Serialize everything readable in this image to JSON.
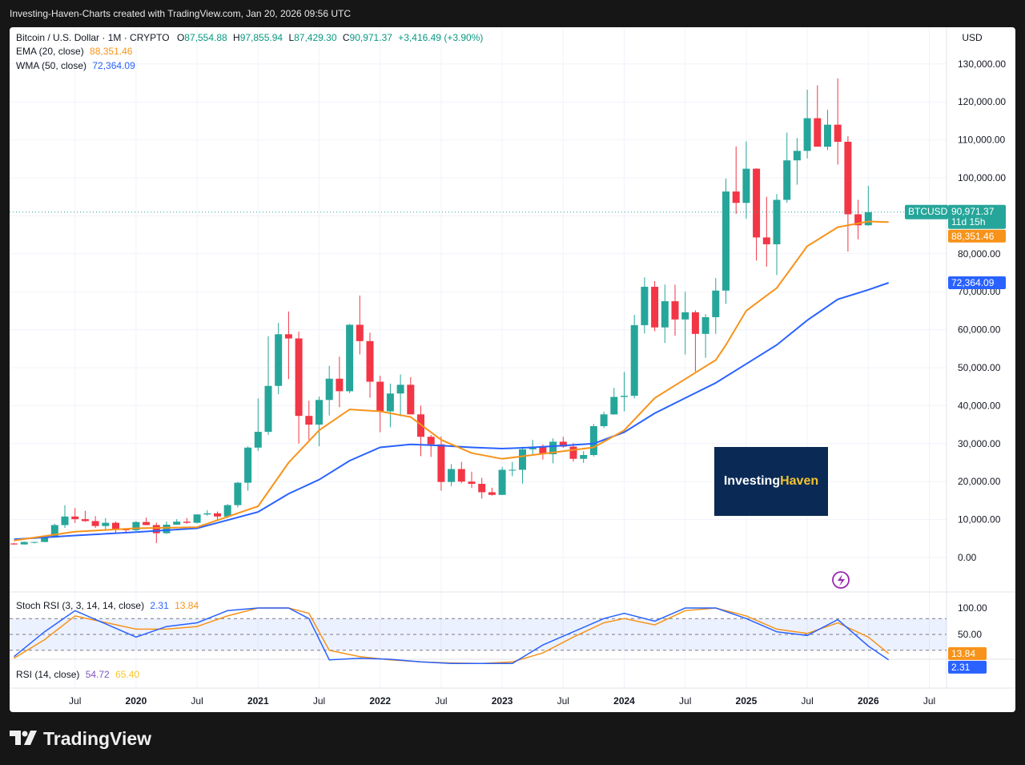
{
  "header": {
    "caption": "Investing-Haven-Charts created with TradingView.com, Jan 20, 2026 09:56 UTC"
  },
  "legend": {
    "symbol": "Bitcoin / U.S. Dollar · 1M · CRYPTO",
    "o_label": "O",
    "o": "87,554.88",
    "h_label": "H",
    "h": "97,855.94",
    "l_label": "L",
    "l": "87,429.30",
    "c_label": "C",
    "c": "90,971.37",
    "change": "+3,416.49 (+3.90%)",
    "ema_label": "EMA (20, close)",
    "ema_value": "88,351.46",
    "wma_label": "WMA (50, close)",
    "wma_value": "72,364.09",
    "stoch_label": "Stoch RSI (3, 3, 14, 14, close)",
    "stoch_k": "2.31",
    "stoch_d": "13.84",
    "rsi_label": "RSI (14, close)",
    "rsi_value": "54.72",
    "rsi_ma": "65.40"
  },
  "currency": "USD",
  "price_badge": {
    "symbol": "BTCUSD",
    "price": "90,971.37",
    "countdown": "11d 15h"
  },
  "ema_badge": "88,351.46",
  "wma_badge": "72,364.09",
  "stoch_badges": {
    "d": "13.84",
    "k": "2.31"
  },
  "watermark": {
    "part1": "Investing",
    "part2": "Haven"
  },
  "footer": {
    "brand": "TradingView"
  },
  "colors": {
    "up": "#26a69a",
    "down": "#f23645",
    "ema": "#f7931a",
    "wma": "#2962ff",
    "k": "#2962ff",
    "d": "#f7931a",
    "rsi": "#7e57c2",
    "rsi_ma": "#f9c62b",
    "badge_bg": "#0a2a55",
    "badge_accent": "#f2c230"
  },
  "chart_data": {
    "type": "candlestick",
    "title": "Bitcoin / U.S. Dollar · 1M · CRYPTO",
    "y_ticks": [
      "130,000.00",
      "120,000.00",
      "110,000.00",
      "100,000.00",
      "90,000.00",
      "80,000.00",
      "70,000.00",
      "60,000.00",
      "50,000.00",
      "40,000.00",
      "30,000.00",
      "20,000.00",
      "10,000.00",
      "0.00"
    ],
    "ylim": [
      0,
      130000
    ],
    "x_ticks": [
      "Jul",
      "2020",
      "Jul",
      "2021",
      "Jul",
      "2022",
      "Jul",
      "2023",
      "Jul",
      "2024",
      "Jul",
      "2025",
      "Jul",
      "2026",
      "Jul"
    ],
    "x_tick_months": [
      "2019-07",
      "2020-01",
      "2020-07",
      "2021-01",
      "2021-07",
      "2022-01",
      "2022-07",
      "2023-01",
      "2023-07",
      "2024-01",
      "2024-07",
      "2025-01",
      "2025-07",
      "2026-01",
      "2026-07"
    ],
    "first_month": "2019-01",
    "candles": [
      [
        3700,
        3850,
        3400,
        3450
      ],
      [
        3450,
        4200,
        3400,
        4100
      ],
      [
        4100,
        4150,
        3700,
        4100
      ],
      [
        4100,
        5300,
        4050,
        5250
      ],
      [
        5250,
        8900,
        5200,
        8550
      ],
      [
        8550,
        13800,
        7800,
        10800
      ],
      [
        10800,
        13000,
        9100,
        10100
      ],
      [
        10100,
        12300,
        9400,
        9600
      ],
      [
        9600,
        10900,
        7800,
        8300
      ],
      [
        8300,
        10400,
        7400,
        9150
      ],
      [
        9150,
        9500,
        6500,
        7550
      ],
      [
        7550,
        7700,
        6400,
        7200
      ],
      [
        7200,
        9600,
        6900,
        9350
      ],
      [
        9350,
        10500,
        8500,
        8550
      ],
      [
        8550,
        9200,
        3800,
        6400
      ],
      [
        6400,
        9500,
        6200,
        8650
      ],
      [
        8650,
        10100,
        8600,
        9450
      ],
      [
        9450,
        10400,
        8900,
        9150
      ],
      [
        9150,
        11400,
        9000,
        11350
      ],
      [
        11350,
        12500,
        11000,
        11650
      ],
      [
        11650,
        12100,
        9900,
        10800
      ],
      [
        10800,
        14100,
        10400,
        13800
      ],
      [
        13800,
        19900,
        13200,
        19700
      ],
      [
        19700,
        29300,
        17600,
        28950
      ],
      [
        28950,
        41900,
        28100,
        33100
      ],
      [
        33100,
        58300,
        32300,
        45200
      ],
      [
        45200,
        61800,
        43000,
        58800
      ],
      [
        58800,
        64800,
        47000,
        57700
      ],
      [
        57700,
        59500,
        30000,
        37300
      ],
      [
        37300,
        41300,
        31000,
        35000
      ],
      [
        35000,
        42400,
        29300,
        41500
      ],
      [
        41500,
        50500,
        37400,
        47100
      ],
      [
        47100,
        52900,
        39600,
        43800
      ],
      [
        43800,
        61500,
        43300,
        61300
      ],
      [
        61300,
        69000,
        53500,
        57000
      ],
      [
        57000,
        59200,
        42100,
        46300
      ],
      [
        46300,
        47900,
        33000,
        38500
      ],
      [
        38500,
        45800,
        34300,
        43200
      ],
      [
        43200,
        48200,
        37200,
        45500
      ],
      [
        45500,
        47500,
        37700,
        37700
      ],
      [
        37700,
        40000,
        26700,
        31800
      ],
      [
        31800,
        32300,
        26500,
        29800
      ],
      [
        29800,
        31900,
        17600,
        19900
      ],
      [
        19900,
        24600,
        18800,
        23300
      ],
      [
        23300,
        25200,
        19600,
        20000
      ],
      [
        20000,
        22600,
        18300,
        19400
      ],
      [
        19400,
        21000,
        15500,
        17200
      ],
      [
        17200,
        18400,
        16300,
        16500
      ],
      [
        16500,
        23900,
        16500,
        23100
      ],
      [
        23100,
        25200,
        21400,
        23100
      ],
      [
        23100,
        29200,
        19500,
        28500
      ],
      [
        28500,
        31000,
        26900,
        29200
      ],
      [
        29200,
        29800,
        25800,
        27200
      ],
      [
        27200,
        31400,
        24800,
        30500
      ],
      [
        30500,
        31800,
        28900,
        29200
      ],
      [
        29200,
        30200,
        25300,
        26000
      ],
      [
        26000,
        28000,
        24900,
        27000
      ],
      [
        27000,
        35200,
        26600,
        34600
      ],
      [
        34600,
        38400,
        34100,
        37700
      ],
      [
        37700,
        44700,
        37600,
        42300
      ],
      [
        42300,
        48900,
        38500,
        42600
      ],
      [
        42600,
        63900,
        41900,
        61200
      ],
      [
        61200,
        73800,
        59000,
        71300
      ],
      [
        71300,
        72800,
        59600,
        60600
      ],
      [
        60600,
        71900,
        56500,
        67500
      ],
      [
        67500,
        71900,
        58400,
        62700
      ],
      [
        62700,
        70000,
        53500,
        64600
      ],
      [
        64600,
        65100,
        49000,
        58900
      ],
      [
        58900,
        64100,
        52600,
        63300
      ],
      [
        63300,
        73600,
        58900,
        70300
      ],
      [
        70300,
        99800,
        66800,
        96400
      ],
      [
        96400,
        108300,
        90500,
        93400
      ],
      [
        93400,
        109600,
        89200,
        102400
      ],
      [
        102400,
        102500,
        78200,
        84300
      ],
      [
        84300,
        95000,
        76600,
        82500
      ],
      [
        82500,
        95700,
        74400,
        94200
      ],
      [
        94200,
        111900,
        93400,
        104600
      ],
      [
        104600,
        110500,
        98200,
        107100
      ],
      [
        107100,
        123200,
        105100,
        115700
      ],
      [
        115700,
        124400,
        108700,
        108200
      ],
      [
        108200,
        117900,
        107300,
        114000
      ],
      [
        114000,
        126200,
        103500,
        109500
      ],
      [
        109500,
        111000,
        80600,
        90400
      ],
      [
        90400,
        94200,
        83800,
        87500
      ],
      [
        87500,
        97900,
        87400,
        90971
      ]
    ],
    "ema_20": [
      [
        0,
        4500
      ],
      [
        6,
        6800
      ],
      [
        12,
        7700
      ],
      [
        18,
        8000
      ],
      [
        24,
        13500
      ],
      [
        27,
        25000
      ],
      [
        30,
        33500
      ],
      [
        33,
        39000
      ],
      [
        36,
        38500
      ],
      [
        39,
        37000
      ],
      [
        42,
        31000
      ],
      [
        45,
        27500
      ],
      [
        48,
        26000
      ],
      [
        51,
        27000
      ],
      [
        54,
        28000
      ],
      [
        57,
        29000
      ],
      [
        60,
        33500
      ],
      [
        63,
        42000
      ],
      [
        66,
        47000
      ],
      [
        69,
        52000
      ],
      [
        70,
        56000
      ],
      [
        72,
        65000
      ],
      [
        75,
        71000
      ],
      [
        78,
        82000
      ],
      [
        81,
        87000
      ],
      [
        84,
        88500
      ],
      [
        86,
        88351
      ]
    ],
    "wma_50": [
      [
        0,
        4800
      ],
      [
        6,
        5800
      ],
      [
        12,
        6700
      ],
      [
        18,
        7700
      ],
      [
        24,
        12000
      ],
      [
        27,
        16800
      ],
      [
        30,
        20500
      ],
      [
        33,
        25500
      ],
      [
        36,
        29000
      ],
      [
        39,
        29800
      ],
      [
        42,
        29500
      ],
      [
        45,
        29000
      ],
      [
        48,
        28700
      ],
      [
        51,
        29000
      ],
      [
        54,
        29500
      ],
      [
        57,
        30000
      ],
      [
        60,
        33000
      ],
      [
        63,
        38000
      ],
      [
        66,
        42000
      ],
      [
        69,
        46000
      ],
      [
        72,
        51000
      ],
      [
        75,
        56000
      ],
      [
        78,
        62500
      ],
      [
        81,
        68000
      ],
      [
        84,
        70500
      ],
      [
        86,
        72364
      ]
    ],
    "stoch_rsi_k": [
      [
        0,
        8
      ],
      [
        3,
        55
      ],
      [
        6,
        95
      ],
      [
        12,
        45
      ],
      [
        15,
        65
      ],
      [
        18,
        72
      ],
      [
        21,
        95
      ],
      [
        24,
        100
      ],
      [
        27,
        100
      ],
      [
        29,
        80
      ],
      [
        31,
        2
      ],
      [
        34,
        5
      ],
      [
        37,
        3
      ],
      [
        40,
        -2
      ],
      [
        43,
        -5
      ],
      [
        46,
        -5
      ],
      [
        49,
        -5
      ],
      [
        52,
        30
      ],
      [
        55,
        55
      ],
      [
        58,
        80
      ],
      [
        60,
        90
      ],
      [
        63,
        75
      ],
      [
        66,
        100
      ],
      [
        69,
        100
      ],
      [
        72,
        80
      ],
      [
        75,
        55
      ],
      [
        78,
        48
      ],
      [
        81,
        78
      ],
      [
        84,
        28
      ],
      [
        86,
        2
      ]
    ],
    "stoch_rsi_d": [
      [
        0,
        5
      ],
      [
        3,
        40
      ],
      [
        6,
        85
      ],
      [
        12,
        60
      ],
      [
        15,
        60
      ],
      [
        18,
        65
      ],
      [
        21,
        85
      ],
      [
        24,
        100
      ],
      [
        27,
        100
      ],
      [
        29,
        90
      ],
      [
        31,
        20
      ],
      [
        34,
        8
      ],
      [
        37,
        2
      ],
      [
        40,
        -2
      ],
      [
        43,
        -4
      ],
      [
        46,
        -5
      ],
      [
        49,
        -2
      ],
      [
        52,
        15
      ],
      [
        55,
        45
      ],
      [
        58,
        72
      ],
      [
        60,
        80
      ],
      [
        63,
        68
      ],
      [
        66,
        95
      ],
      [
        69,
        100
      ],
      [
        72,
        85
      ],
      [
        75,
        60
      ],
      [
        78,
        52
      ],
      [
        81,
        72
      ],
      [
        84,
        45
      ],
      [
        86,
        13.84
      ]
    ],
    "stoch_levels": [
      80,
      50,
      20
    ],
    "stoch_ticks": [
      "100.00",
      "50.00"
    ]
  }
}
